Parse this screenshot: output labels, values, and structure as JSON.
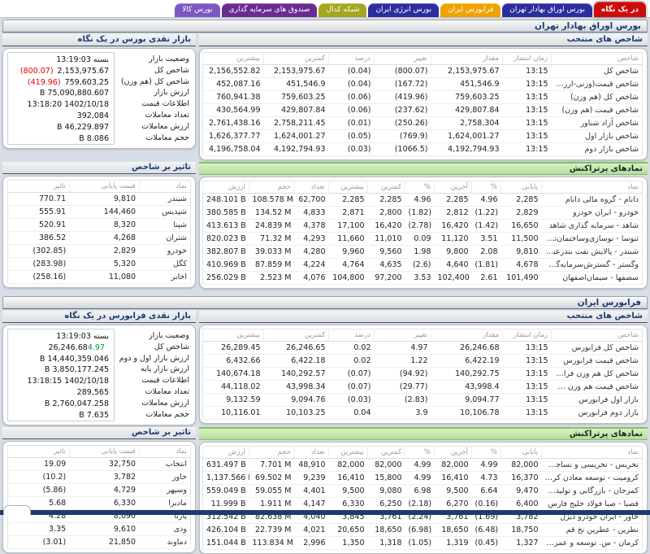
{
  "colors": {
    "negative": "#e40000",
    "positive": "#009632",
    "accent_navy": "#1b3a75",
    "green_header": "#b4dc9b",
    "green_header_light": "#d9f0c4",
    "footer": "#1c3c6e"
  },
  "tabs": [
    {
      "label": "در یک نگاه",
      "color": "#cf0a0a",
      "active": true
    },
    {
      "label": "بورس اوراق بهادار تهران",
      "color": "#2d2d9e",
      "active": false
    },
    {
      "label": "فرابورس ایران",
      "color": "#f0a200",
      "active": false
    },
    {
      "label": "بورس انرژی ایران",
      "color": "#2d2d9e",
      "active": false
    },
    {
      "label": "شبکه کدال",
      "color": "#a6a61e",
      "active": false
    },
    {
      "label": "صندوق های سرمایه گذاری",
      "color": "#6a2c91",
      "active": false
    },
    {
      "label": "بورس کالا",
      "color": "#7e57c2",
      "active": false
    }
  ],
  "sections": [
    {
      "title": "بورس اوراق بهادار تهران",
      "market_panel": {
        "title": "بازار نقدی بورس در یک نگاه",
        "rows": [
          {
            "label": "وضعیت بازار",
            "value": "بسته 13:19:03"
          },
          {
            "label": "شاخص کل",
            "value": "2,153,975.67",
            "change": "(800.07)",
            "c": "neg"
          },
          {
            "label": "شاخص کل (هم وزن)",
            "value": "759,603.25",
            "change": "(419.96)",
            "c": "neg"
          },
          {
            "label": "ارزش بازار",
            "value": "75,090,880.607 B"
          },
          {
            "label": "اطلاعات قیمت",
            "value": "1402/10/18 13:18:20"
          },
          {
            "label": "تعداد معاملات",
            "value": "392,084"
          },
          {
            "label": "ارزش معاملات",
            "value": "46,229.897 B"
          },
          {
            "label": "حجم معاملات",
            "value": "8.086 B"
          }
        ]
      },
      "indices": {
        "title": "شاخص های منتخب",
        "headers": [
          "شاخص",
          "زمان انتشار",
          "مقدار",
          "تغییر",
          "درصد",
          "کمترین",
          "بیشترین"
        ],
        "rows": [
          [
            "شاخص کل",
            "13:15",
            "2,153,975.67",
            {
              "v": "(800.07)",
              "c": "neg"
            },
            {
              "v": "(0.04)",
              "c": "neg"
            },
            "2,153,975.67",
            "2,156,552.82"
          ],
          [
            "شاخص قیمت(وزنی-ارزشی)",
            "13:15",
            "451,546.9",
            {
              "v": "(167.72)",
              "c": "neg"
            },
            {
              "v": "(0.04)",
              "c": "neg"
            },
            "451,546.9",
            "452,087.16"
          ],
          [
            "شاخص کل (هم وزن)",
            "13:15",
            "759,603.25",
            {
              "v": "(419.96)",
              "c": "neg"
            },
            {
              "v": "(0.06)",
              "c": "neg"
            },
            "759,603.25",
            "760,941.38"
          ],
          [
            "شاخص قیمت (هم وزن)",
            "13:15",
            "429,807.84",
            {
              "v": "(237.62)",
              "c": "neg"
            },
            {
              "v": "(0.06)",
              "c": "neg"
            },
            "429,807.84",
            "430,564.99"
          ],
          [
            "شاخص آزاد شناور",
            "13:15",
            "2,758,304",
            {
              "v": "(250.26)",
              "c": "neg"
            },
            {
              "v": "(0.01)",
              "c": "neg"
            },
            "2,758,211.45",
            "2,761,438.16"
          ],
          [
            "شاخص بازار اول",
            "13:15",
            "1,624,001.27",
            {
              "v": "(769.9)",
              "c": "neg"
            },
            {
              "v": "(0.05)",
              "c": "neg"
            },
            "1,624,001.27",
            "1,626,377.77"
          ],
          [
            "شاخص بازار دوم",
            "13:15",
            "4,192,794.93",
            {
              "v": "(1066.5)",
              "c": "neg"
            },
            {
              "v": "(0.03)",
              "c": "neg"
            },
            "4,192,794.93",
            "4,196,758.04"
          ]
        ]
      },
      "top_traded": {
        "title": "نمادهای پرتراکنش",
        "headers": [
          "نماد",
          "پایانی",
          "%",
          "آخرین",
          "%",
          "کمترین",
          "بیشترین",
          "تعداد",
          "حجم",
          "ارزش"
        ],
        "rows": [
          [
            "دانام - گروه مالی دانام",
            "2,285",
            {
              "v": "4.96",
              "c": "pos"
            },
            "2,285",
            {
              "v": "4.96",
              "c": "pos"
            },
            "2,285",
            "2,285",
            "62,700",
            "108.578 M",
            "248.101 B"
          ],
          [
            "خودرو - ایران خودرو",
            "2,829",
            {
              "v": "(1.22)",
              "c": "neg"
            },
            "2,812",
            {
              "v": "(1.82)",
              "c": "neg"
            },
            "2,800",
            "2,871",
            "4,833",
            "134.52 M",
            "380.585 B"
          ],
          [
            "شاهد - سرمایه گذاری شاهد",
            "16,650",
            {
              "v": "(1.42)",
              "c": "neg"
            },
            "16,420",
            {
              "v": "(2.78)",
              "c": "neg"
            },
            "16,420",
            "17,100",
            "4,378",
            "24.839 M",
            "413.613 B"
          ],
          [
            "ثنوسا - نوسازی‌وساختمان‌تهران",
            "11,500",
            {
              "v": "3.51",
              "c": "pos"
            },
            "11,120",
            {
              "v": "0.09",
              "c": "pos"
            },
            "11,010",
            "11,660",
            "4,293",
            "71.32 M",
            "820.023 B"
          ],
          [
            "شبندر - پالایش نفت بندرعباس",
            "9,810",
            {
              "v": "2.08",
              "c": "pos"
            },
            "9,800",
            {
              "v": "1.98",
              "c": "pos"
            },
            "9,560",
            "9,960",
            "4,280",
            "39.033 M",
            "382.807 B"
          ],
          [
            "وگستر - گسترش‌سرمایه‌گذاری‌ایرانخ...",
            "4,678",
            {
              "v": "(1.81)",
              "c": "neg"
            },
            "4,640",
            {
              "v": "(2.6)",
              "c": "neg"
            },
            "4,635",
            "4,764",
            "4,224",
            "87.859 M",
            "410.969 B"
          ],
          [
            "سصفها - سیمان‌اصفهان",
            "101,490",
            {
              "v": "2.61",
              "c": "pos"
            },
            "102,400",
            {
              "v": "3.53",
              "c": "pos"
            },
            "97,200",
            "104,800",
            "4,076",
            "2.523 M",
            "256.029 B"
          ]
        ]
      },
      "index_impact": {
        "title": "تاثیر بر شاخص",
        "headers": [
          "نماد",
          "قیمت پایانی",
          "تاثیر"
        ],
        "rows": [
          [
            "شبندر",
            "9,810",
            {
              "v": "770.71",
              "c": "pos"
            }
          ],
          [
            "شپدیس",
            "144,460",
            {
              "v": "555.91",
              "c": "pos"
            }
          ],
          [
            "شپنا",
            "8,320",
            {
              "v": "520.91",
              "c": "pos"
            }
          ],
          [
            "شتران",
            "4,268",
            {
              "v": "386.52",
              "c": "pos"
            }
          ],
          [
            "خودرو",
            "2,829",
            {
              "v": "(302.85)",
              "c": "neg"
            }
          ],
          [
            "کگل",
            "5,320",
            {
              "v": "(283.98)",
              "c": "neg"
            }
          ],
          [
            "اخابر",
            "11,080",
            {
              "v": "(258.16)",
              "c": "neg"
            }
          ]
        ]
      }
    },
    {
      "title": "فرابورس ایران",
      "market_panel": {
        "title": "بازار نقدی فرابورس در یک نگاه",
        "rows": [
          {
            "label": "وضعیت بازار",
            "value": "بسته 13:19:03"
          },
          {
            "label": "شاخص کل",
            "value": "26,246.68",
            "change": "4.97",
            "c": "pos"
          },
          {
            "label": "ارزش بازار اول و دوم",
            "value": "14,440,359.046 B"
          },
          {
            "label": "ارزش بازار پایه",
            "value": "3,850,177.245 B"
          },
          {
            "label": "اطلاعات قیمت",
            "value": "1402/10/18 13:18:15"
          },
          {
            "label": "تعداد معاملات",
            "value": "289,565"
          },
          {
            "label": "ارزش معاملات",
            "value": "2,760,047.258 B"
          },
          {
            "label": "حجم معاملات",
            "value": "7.635 B"
          }
        ]
      },
      "indices": {
        "title": "شاخص های منتخب",
        "headers": [
          "شاخص",
          "زمان انتشار",
          "مقدار",
          "تغییر",
          "درصد",
          "کمترین",
          "بیشترین"
        ],
        "rows": [
          [
            "شاخص کل فرابورس",
            "13:15",
            "26,246.68",
            {
              "v": "4.97",
              "c": "pos"
            },
            {
              "v": "0.02",
              "c": "pos"
            },
            "26,246.65",
            "26,289.45"
          ],
          [
            "شاخص قیمت فرابورس",
            "13:15",
            "6,422.19",
            {
              "v": "1.22",
              "c": "pos"
            },
            {
              "v": "0.02",
              "c": "pos"
            },
            "6,422.18",
            "6,432.66"
          ],
          [
            "شاخص کل هم وزن فرابورس",
            "13:15",
            "140,292.75",
            {
              "v": "(94.92)",
              "c": "neg"
            },
            {
              "v": "(0.07)",
              "c": "neg"
            },
            "140,292.57",
            "140,674.18"
          ],
          [
            "شاخص قیمت هم وزن فراب...",
            "13:15",
            "43,998.4",
            {
              "v": "(29.77)",
              "c": "neg"
            },
            {
              "v": "(0.07)",
              "c": "neg"
            },
            "43,998.34",
            "44,118.02"
          ],
          [
            "بازار اول فرابورس",
            "13:15",
            "9,094.77",
            {
              "v": "(2.83)",
              "c": "neg"
            },
            {
              "v": "(0.03)",
              "c": "neg"
            },
            "9,094.76",
            "9,132.59"
          ],
          [
            "بازار دوم فرابورس",
            "13:15",
            "10,106.78",
            {
              "v": "3.9",
              "c": "pos"
            },
            {
              "v": "0.04",
              "c": "pos"
            },
            "10,103.25",
            "10,116.01"
          ]
        ]
      },
      "top_traded": {
        "title": "نمادهای پرتراکنش",
        "headers": [
          "نماد",
          "پایانی",
          "%",
          "آخرین",
          "%",
          "کمترین",
          "بیشترین",
          "تعداد",
          "حجم",
          "ارزش"
        ],
        "rows": [
          [
            "نخریس - نخریسی و نساجی خسروی ...",
            "82,000",
            {
              "v": "4.99",
              "c": "pos"
            },
            "82,000",
            {
              "v": "4.99",
              "c": "pos"
            },
            "82,000",
            "82,000",
            "48,910",
            "7.701 M",
            "631.497 B"
          ],
          [
            "کرومیت - توسعه معادن کرومیت کاوندگان",
            "16,370",
            {
              "v": "4.73",
              "c": "pos"
            },
            "16,410",
            {
              "v": "4.99",
              "c": "pos"
            },
            "15,800",
            "16,410",
            "9,239",
            "69.502 M",
            "1,137.566 B"
          ],
          [
            "کمرجان - بازرگانی و تولیدی مرجان کار",
            "9,470",
            {
              "v": "6.64",
              "c": "pos"
            },
            "9,500",
            {
              "v": "6.98",
              "c": "pos"
            },
            "9,080",
            "9,500",
            "4,401",
            "59.055 M",
            "559.049 B"
          ],
          [
            "فصبا - صبا فولاد خلیج فارس",
            "6,400",
            {
              "v": "(0.16)",
              "c": "neg"
            },
            "6,270",
            {
              "v": "(2.18)",
              "c": "neg"
            },
            "6,250",
            "6,330",
            "4,147",
            "1.911 M",
            "11.999 B"
          ],
          [
            "خاور - ایران خودرو دیزل",
            "3,782",
            {
              "v": "(1.69)",
              "c": "neg"
            },
            "3,761",
            {
              "v": "(2.24)",
              "c": "neg"
            },
            "3,761",
            "3,845",
            "4,040",
            "82.638 M",
            "312.542 B"
          ],
          [
            "نطرین - عطرین نخ قم",
            "18,750",
            {
              "v": "(6.48)",
              "c": "neg"
            },
            "18,650",
            {
              "v": "(6.98)",
              "c": "neg"
            },
            "18,650",
            "20,650",
            "4,021",
            "22.739 M",
            "426.104 B"
          ],
          [
            "کرمان - س. توسعه و عمران استان کرم...",
            "1,327",
            {
              "v": "(0.45)",
              "c": "neg"
            },
            "1,319",
            {
              "v": "(1.05)",
              "c": "neg"
            },
            "1,318",
            "1,350",
            "2,996",
            "113.834 M",
            "151.044 B"
          ]
        ]
      },
      "index_impact": {
        "title": "تاثیر بر شاخص",
        "headers": [
          "نماد",
          "قیمت پایانی",
          "تاثیر"
        ],
        "rows": [
          [
            "انتخاب",
            "32,750",
            {
              "v": "19.09",
              "c": "pos"
            }
          ],
          [
            "خاور",
            "3,782",
            {
              "v": "(10.2)",
              "c": "neg"
            }
          ],
          [
            "وسپهر",
            "4,729",
            {
              "v": "(5.86)",
              "c": "neg"
            }
          ],
          [
            "مادیرا",
            "6,330",
            {
              "v": "5.68",
              "c": "pos"
            }
          ],
          [
            "پارتا",
            "8,090",
            {
              "v": "4.28",
              "c": "pos"
            }
          ],
          [
            "ودی",
            "9,610",
            {
              "v": "3.35",
              "c": "pos"
            }
          ],
          [
            "دماوند",
            "21,850",
            {
              "v": "(3.01)",
              "c": "neg"
            }
          ]
        ]
      }
    }
  ]
}
